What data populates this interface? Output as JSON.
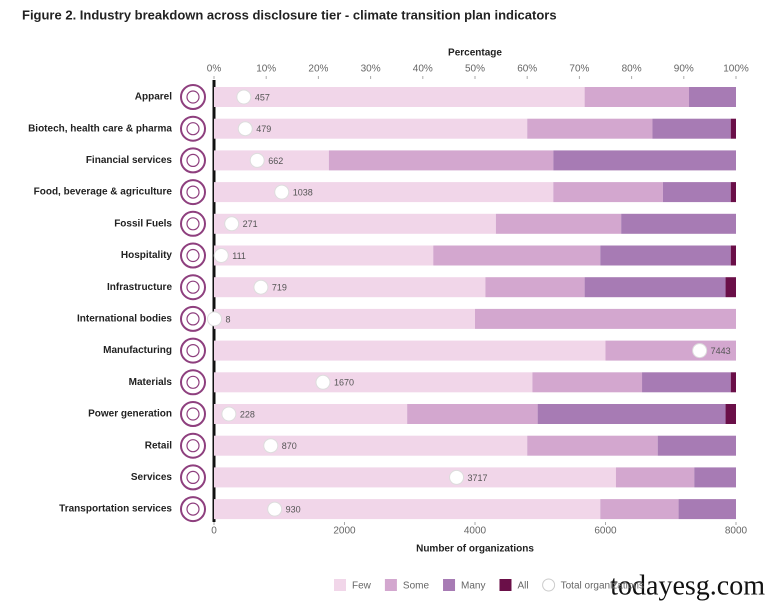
{
  "chart_data": {
    "type": "bar",
    "orientation": "horizontal",
    "stacked": true,
    "title": "Figure 2. Industry breakdown across disclosure tier - climate transition plan indicators",
    "xlabel": "Percentage",
    "x2label": "Number of organizations",
    "categories": [
      "Apparel",
      "Biotech, health care & pharma",
      "Financial services",
      "Food, beverage & agriculture",
      "Fossil Fuels",
      "Hospitality",
      "Infrastructure",
      "International bodies",
      "Manufacturing",
      "Materials",
      "Power generation",
      "Retail",
      "Services",
      "Transportation services"
    ],
    "xlim": [
      0,
      100
    ],
    "xticks": [
      {
        "value": 0,
        "label": "0%"
      },
      {
        "value": 10,
        "label": "10%"
      },
      {
        "value": 20,
        "label": "20%"
      },
      {
        "value": 30,
        "label": "30%"
      },
      {
        "value": 40,
        "label": "40%"
      },
      {
        "value": 50,
        "label": "50%"
      },
      {
        "value": 60,
        "label": "60%"
      },
      {
        "value": 70,
        "label": "70%"
      },
      {
        "value": 80,
        "label": "80%"
      },
      {
        "value": 90,
        "label": "90%"
      },
      {
        "value": 100,
        "label": "100%"
      }
    ],
    "x2lim": [
      0,
      8000
    ],
    "x2ticks": [
      0,
      2000,
      4000,
      6000,
      8000
    ],
    "series": [
      {
        "name": "Few",
        "color": "#f1d6e9",
        "values": [
          71,
          60,
          22,
          65,
          54,
          42,
          52,
          50,
          75,
          61,
          37,
          60,
          77,
          74
        ]
      },
      {
        "name": "Some",
        "color": "#d3a7cf",
        "values": [
          20,
          24,
          43,
          21,
          24,
          32,
          19,
          50,
          25,
          21,
          25,
          25,
          15,
          15
        ]
      },
      {
        "name": "Many",
        "color": "#a77bb4",
        "values": [
          9,
          15,
          35,
          13,
          22,
          25,
          27,
          0,
          0,
          17,
          36,
          15,
          8,
          11
        ]
      },
      {
        "name": "All",
        "color": "#6a0f48",
        "values": [
          0,
          1,
          0,
          1,
          0,
          1,
          2,
          0,
          0,
          1,
          2,
          0,
          0,
          0
        ]
      },
      {
        "name": "Total organizations",
        "axis": "x2",
        "marker": "circle",
        "color": "#ffffff",
        "values": [
          457,
          479,
          662,
          1038,
          271,
          111,
          719,
          8,
          7443,
          1670,
          228,
          870,
          3717,
          930
        ]
      }
    ],
    "watermark": "todayesg.com"
  }
}
